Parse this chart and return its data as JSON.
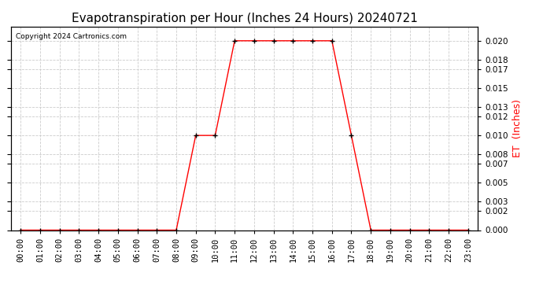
{
  "title": "Evapotranspiration per Hour (Inches 24 Hours) 20240721",
  "ylabel": "ET  (Inches)",
  "copyright": "Copyright 2024 Cartronics.com",
  "hours": [
    0,
    1,
    2,
    3,
    4,
    5,
    6,
    7,
    8,
    9,
    10,
    11,
    12,
    13,
    14,
    15,
    16,
    17,
    18,
    19,
    20,
    21,
    22,
    23
  ],
  "et_values": [
    0.0,
    0.0,
    0.0,
    0.0,
    0.0,
    0.0,
    0.0,
    0.0,
    0.0,
    0.01,
    0.01,
    0.02,
    0.02,
    0.02,
    0.02,
    0.02,
    0.02,
    0.01,
    0.0,
    0.0,
    0.0,
    0.0,
    0.0,
    0.0
  ],
  "line_color": "#ff0000",
  "marker": "+",
  "marker_color": "#000000",
  "marker_size": 5,
  "ylim": [
    0.0,
    0.0215
  ],
  "yticks": [
    0.0,
    0.002,
    0.003,
    0.005,
    0.007,
    0.008,
    0.01,
    0.012,
    0.013,
    0.015,
    0.017,
    0.018,
    0.02
  ],
  "background_color": "#ffffff",
  "grid_color": "#cccccc",
  "title_fontsize": 11,
  "tick_fontsize": 7.5,
  "ylabel_color": "#ff0000",
  "ylabel_fontsize": 9
}
